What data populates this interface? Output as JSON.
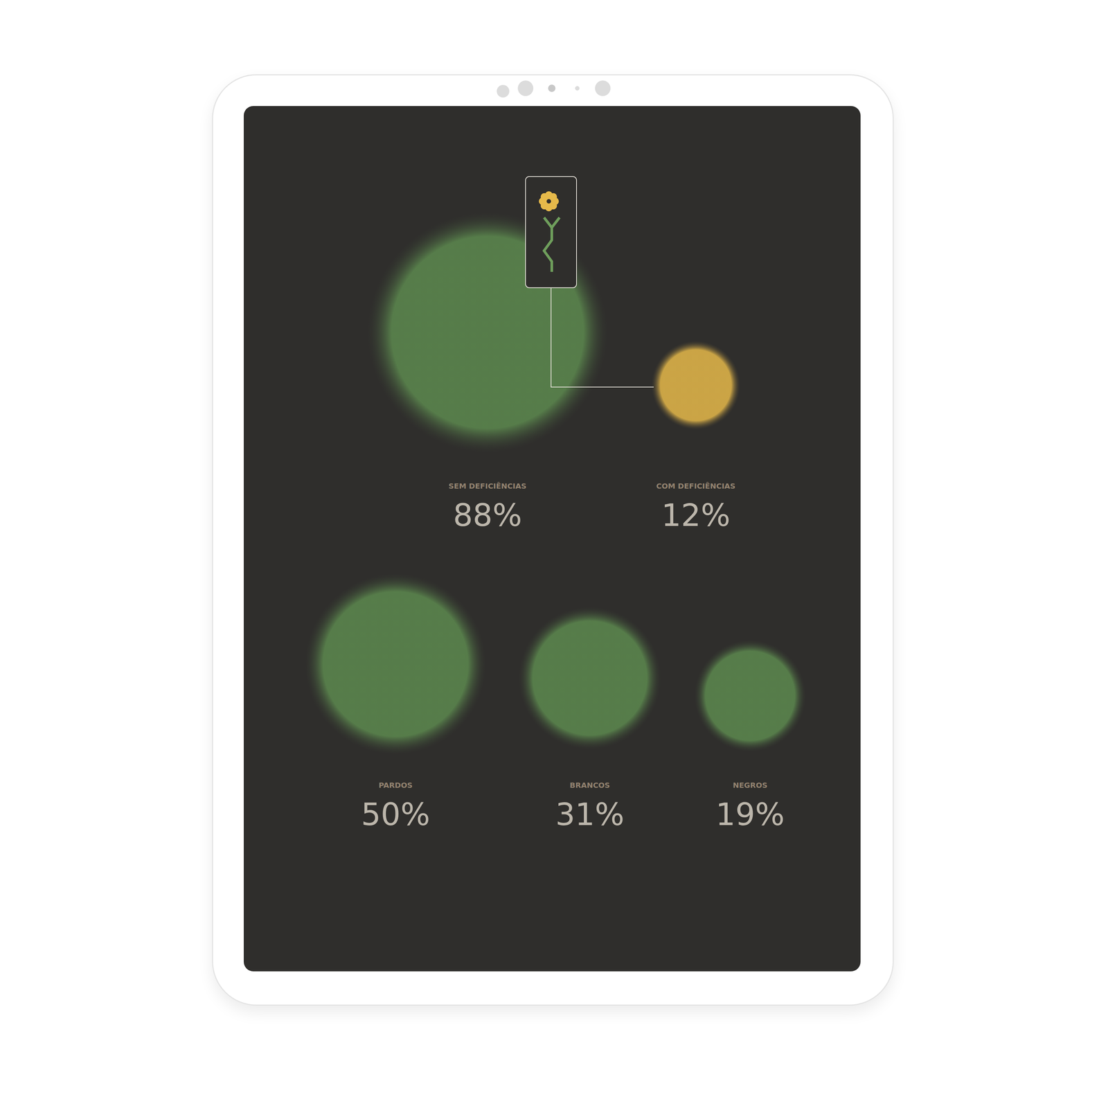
{
  "chart_data": [
    {
      "type": "bubble",
      "categories": [
        "SEM DEFICIÊNCIAS",
        "COM DEFICIÊNCIAS"
      ],
      "values": [
        88,
        12
      ],
      "value_labels": [
        "88%",
        "12%"
      ],
      "colors": [
        "#5d8a4f",
        "#e6b94a"
      ],
      "data_labels": true,
      "tick_labels": false
    },
    {
      "type": "bubble",
      "categories": [
        "PARDOS",
        "BRANCOS",
        "NEGROS"
      ],
      "values": [
        50,
        31,
        19
      ],
      "value_labels": [
        "50%",
        "31%",
        "19%"
      ],
      "colors": [
        "#5d8a4f",
        "#5d8a4f",
        "#5d8a4f"
      ],
      "data_labels": true,
      "tick_labels": false
    }
  ]
}
